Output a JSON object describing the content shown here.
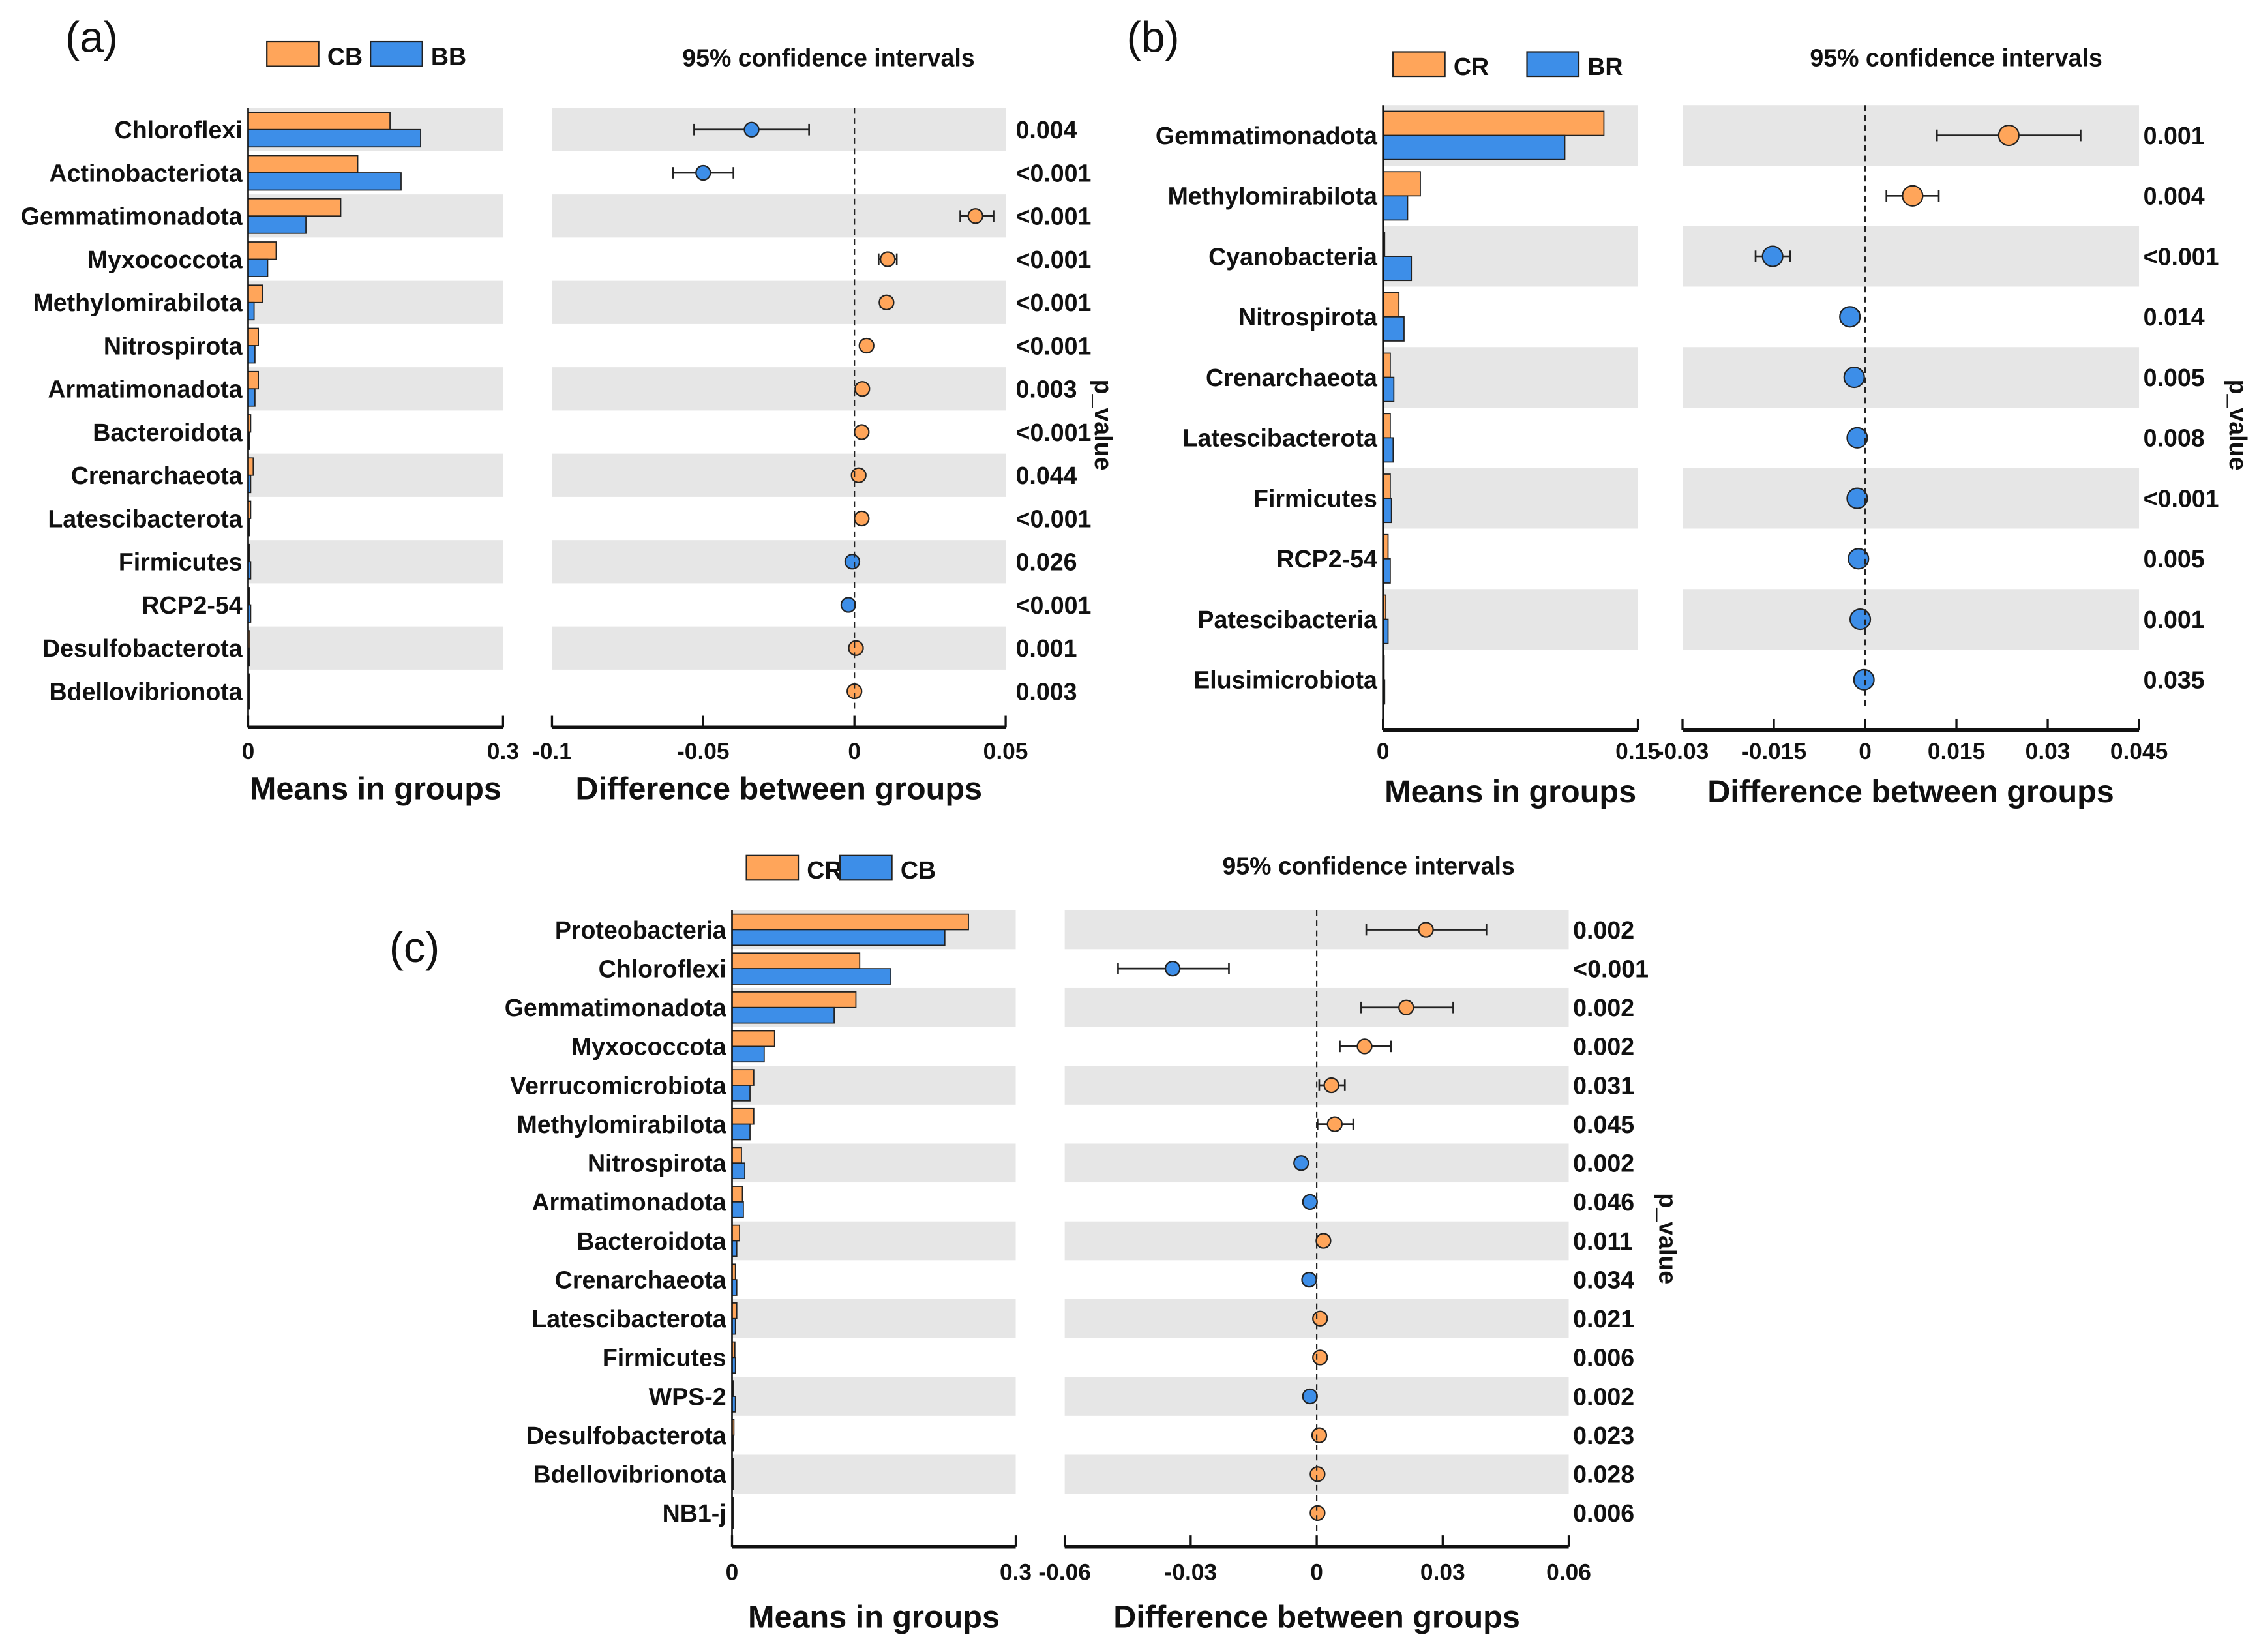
{
  "chart_data": [
    {
      "type": "bar",
      "panel_label": "(a)",
      "groups": [
        "CB",
        "BB"
      ],
      "colors": [
        "#FFA55A",
        "#3D8EE8"
      ],
      "categories": [
        "Chloroflexi",
        "Actinobacteriota",
        "Gemmatimonadota",
        "Myxococcota",
        "Methylomirabilota",
        "Nitrospirota",
        "Armatimonadota",
        "Bacteroidota",
        "Crenarchaeota",
        "Latescibacterota",
        "Firmicutes",
        "RCP2-54",
        "Desulfobacterota",
        "Bdellovibrionota"
      ],
      "means": [
        {
          "name": "CB",
          "values": [
            0.167,
            0.129,
            0.109,
            0.033,
            0.017,
            0.012,
            0.012,
            0.003,
            0.006,
            0.003,
            0.001,
            0.001,
            0.002,
            0.001
          ]
        },
        {
          "name": "BB",
          "values": [
            0.203,
            0.18,
            0.068,
            0.023,
            0.007,
            0.008,
            0.008,
            0.001,
            0.003,
            0.001,
            0.003,
            0.003,
            0.001,
            0.0005
          ]
        }
      ],
      "means_xlabel": "Means in groups",
      "means_xlim": [
        0,
        0.3
      ],
      "means_ticks": [
        "0",
        "0.3"
      ],
      "diff": [
        -0.034,
        -0.05,
        0.04,
        0.011,
        0.0106,
        0.004,
        0.0026,
        0.0024,
        0.0014,
        0.0024,
        -0.0007,
        -0.002,
        0.0005,
        0.0
      ],
      "ci_low": [
        -0.053,
        -0.06,
        0.035,
        0.008,
        0.0086,
        0.003,
        0.0016,
        0.0014,
        0.0004,
        0.0014,
        -0.0015,
        -0.003,
        -0.0003,
        -0.0008
      ],
      "ci_high": [
        -0.015,
        -0.04,
        0.046,
        0.014,
        0.0126,
        0.005,
        0.0036,
        0.0034,
        0.0024,
        0.0034,
        0.0001,
        -0.001,
        0.0013,
        0.0008
      ],
      "diff_title": "95% confidence intervals",
      "diff_xlabel": "Difference between groups",
      "diff_xlim": [
        -0.1,
        0.05
      ],
      "diff_ticks": [
        -0.1,
        -0.05,
        0,
        0.05
      ],
      "diff_tick_labels": [
        "-0.1",
        "-0.05",
        "0",
        "0.05"
      ],
      "p_values": [
        "0.004",
        "<0.001",
        "<0.001",
        "<0.001",
        "<0.001",
        "<0.001",
        "0.003",
        "<0.001",
        "0.044",
        "<0.001",
        "0.026",
        "<0.001",
        "0.001",
        "0.003"
      ],
      "p_label": "p_value"
    },
    {
      "type": "bar",
      "panel_label": "(b)",
      "groups": [
        "CR",
        "BR"
      ],
      "colors": [
        "#FFA55A",
        "#3D8EE8"
      ],
      "categories": [
        "Gemmatimonadota",
        "Methylomirabilota",
        "Cyanobacteria",
        "Nitrospirota",
        "Crenarchaeota",
        "Latescibacterota",
        "Firmicutes",
        "RCP2-54",
        "Patescibacteria",
        "Elusimicrobiota"
      ],
      "means": [
        {
          "name": "CR",
          "values": [
            0.13,
            0.022,
            0.001,
            0.0094,
            0.0043,
            0.0043,
            0.0043,
            0.003,
            0.0017,
            0.0004
          ]
        },
        {
          "name": "BR",
          "values": [
            0.107,
            0.0145,
            0.0167,
            0.0124,
            0.0064,
            0.006,
            0.005,
            0.0043,
            0.003,
            0.001
          ]
        }
      ],
      "means_xlabel": "Means in groups",
      "means_xlim": [
        0,
        0.15
      ],
      "means_ticks": [
        "0",
        "0.15"
      ],
      "diff": [
        0.0236,
        0.0078,
        -0.0152,
        -0.0025,
        -0.0018,
        -0.0013,
        -0.0013,
        -0.0011,
        -0.0008,
        -0.0002
      ],
      "ci_low": [
        0.0118,
        0.0035,
        -0.018,
        -0.004,
        -0.0028,
        -0.0021,
        -0.0021,
        -0.0018,
        -0.0014,
        -0.0007
      ],
      "ci_high": [
        0.0354,
        0.0121,
        -0.0123,
        -0.001,
        -0.0008,
        -0.0005,
        -0.0005,
        -0.0004,
        -0.0002,
        0.0003
      ],
      "diff_title": "95% confidence intervals",
      "diff_xlabel": "Difference between groups",
      "diff_xlim": [
        -0.03,
        0.045
      ],
      "diff_ticks": [
        -0.03,
        -0.015,
        0,
        0.015,
        0.03,
        0.045
      ],
      "diff_tick_labels": [
        "-0.03",
        "-0.015",
        "0",
        "0.015",
        "0.03",
        "0.045"
      ],
      "p_values": [
        "0.001",
        "0.004",
        "<0.001",
        "0.014",
        "0.005",
        "0.008",
        "<0.001",
        "0.005",
        "0.001",
        "0.035"
      ],
      "p_label": "p_value"
    },
    {
      "type": "bar",
      "panel_label": "(c)",
      "groups": [
        "CR",
        "CB"
      ],
      "colors": [
        "#FFA55A",
        "#3D8EE8"
      ],
      "categories": [
        "Proteobacteria",
        "Chloroflexi",
        "Gemmatimonadota",
        "Myxococcota",
        "Verrucomicrobiota",
        "Methylomirabilota",
        "Nitrospirota",
        "Armatimonadota",
        "Bacteroidota",
        "Crenarchaeota",
        "Latescibacterota",
        "Firmicutes",
        "WPS-2",
        "Desulfobacterota",
        "Bdellovibrionota",
        "NB1-j"
      ],
      "means": [
        {
          "name": "CR",
          "values": [
            0.25,
            0.135,
            0.131,
            0.045,
            0.023,
            0.023,
            0.01,
            0.011,
            0.008,
            0.0036,
            0.005,
            0.003,
            0.001,
            0.002,
            0.001,
            0.001
          ]
        },
        {
          "name": "CB",
          "values": [
            0.225,
            0.168,
            0.108,
            0.034,
            0.019,
            0.019,
            0.0135,
            0.012,
            0.005,
            0.005,
            0.0036,
            0.0036,
            0.0036,
            0.001,
            0.0005,
            0.0005
          ]
        }
      ],
      "means_xlabel": "Means in groups",
      "means_xlim": [
        0,
        0.3
      ],
      "means_ticks": [
        "0",
        "0.3"
      ],
      "diff": [
        0.026,
        -0.0343,
        0.0213,
        0.0114,
        0.0035,
        0.0043,
        -0.0037,
        -0.0016,
        0.0016,
        -0.0018,
        0.0008,
        0.0008,
        -0.0016,
        0.0006,
        0.0002,
        0.0002
      ],
      "ci_low": [
        0.0118,
        -0.0473,
        0.0106,
        0.0055,
        0.0006,
        0.0002,
        -0.0047,
        -0.0024,
        0.0008,
        -0.0026,
        0.0,
        0.0,
        -0.0024,
        -0.0002,
        -0.0006,
        -0.0006
      ],
      "ci_high": [
        0.0404,
        -0.0209,
        0.0325,
        0.0177,
        0.0067,
        0.0087,
        -0.0027,
        -0.0008,
        0.0024,
        -0.001,
        0.0016,
        0.0016,
        -0.0008,
        0.0014,
        0.001,
        0.001
      ],
      "diff_title": "95% confidence intervals",
      "diff_xlabel": "Difference between groups",
      "diff_xlim": [
        -0.06,
        0.06
      ],
      "diff_ticks": [
        -0.06,
        -0.03,
        0,
        0.03,
        0.06
      ],
      "diff_tick_labels": [
        "-0.06",
        "-0.03",
        "0",
        "0.03",
        "0.06"
      ],
      "p_values": [
        "0.002",
        "<0.001",
        "0.002",
        "0.002",
        "0.031",
        "0.045",
        "0.002",
        "0.046",
        "0.011",
        "0.034",
        "0.021",
        "0.006",
        "0.002",
        "0.023",
        "0.028",
        "0.006"
      ],
      "p_label": "p_value"
    }
  ]
}
